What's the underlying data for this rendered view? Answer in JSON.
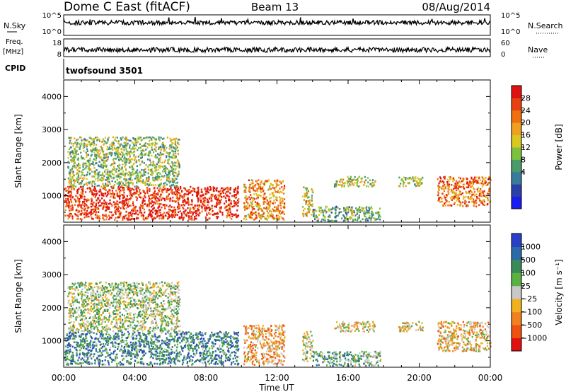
{
  "header": {
    "station": "Dome C East (fitACF)",
    "beam": "Beam 13",
    "date": "08/Aug/2014"
  },
  "strips": {
    "nsky_label": "N.Sky",
    "nsky_ticks": [
      "10^5",
      "10^0"
    ],
    "nsearch_label": "N.Search",
    "nsearch_ticks": [
      "10^5",
      "10^0"
    ],
    "freq_label_line1": "Freq.",
    "freq_label_line2": "[MHz]",
    "freq_ticks": [
      "18",
      "8"
    ],
    "nave_label": "Nave",
    "nave_ticks": [
      "60",
      "0"
    ],
    "cpid_label": "CPID",
    "cpid_value": "twofsound 3501"
  },
  "chart_data": [
    {
      "type": "heatmap",
      "name": "power-panel",
      "xlabel": "",
      "ylabel": "Slant Range [km]",
      "x_ticks": [
        "00:00",
        "04:00",
        "08:00",
        "12:00",
        "16:00",
        "20:00",
        "00:00"
      ],
      "y_ticks": [
        1000,
        2000,
        3000,
        4000
      ],
      "ylim": [
        200,
        4500
      ],
      "xlim_hours": [
        0,
        24
      ],
      "colorbar": {
        "label": "Power [dB]",
        "ticks": [
          "28",
          "24",
          "20",
          "16",
          "12",
          "8",
          "4"
        ],
        "colors": [
          "#1c1cf0",
          "#2a3fa8",
          "#3a7a9a",
          "#4a9a6a",
          "#7cc040",
          "#d8c820",
          "#f0a020",
          "#f07010",
          "#e84010",
          "#e01010"
        ]
      },
      "regions": [
        {
          "t0": 0.0,
          "t1": 9.8,
          "r0": 300,
          "r1": 1300,
          "level": 0.9
        },
        {
          "t0": 0.2,
          "t1": 6.5,
          "r0": 1300,
          "r1": 2800,
          "level": 0.45
        },
        {
          "t0": 10.1,
          "t1": 12.4,
          "r0": 300,
          "r1": 1500,
          "level": 0.7
        },
        {
          "t0": 13.4,
          "t1": 14.0,
          "r0": 400,
          "r1": 1300,
          "level": 0.6
        },
        {
          "t0": 14.0,
          "t1": 17.8,
          "r0": 250,
          "r1": 700,
          "level": 0.4
        },
        {
          "t0": 15.2,
          "t1": 17.5,
          "r0": 1300,
          "r1": 1600,
          "level": 0.5
        },
        {
          "t0": 18.8,
          "t1": 20.2,
          "r0": 1300,
          "r1": 1600,
          "level": 0.5
        },
        {
          "t0": 21.0,
          "t1": 24.0,
          "r0": 700,
          "r1": 1600,
          "level": 0.75
        }
      ]
    },
    {
      "type": "heatmap",
      "name": "velocity-panel",
      "xlabel": "Time UT",
      "ylabel": "Slant Range [km]",
      "x_ticks": [
        "00:00",
        "04:00",
        "08:00",
        "12:00",
        "16:00",
        "20:00",
        "00:00"
      ],
      "y_ticks": [
        1000,
        2000,
        3000,
        4000
      ],
      "ylim": [
        200,
        4500
      ],
      "xlim_hours": [
        0,
        24
      ],
      "colorbar": {
        "label": "Velocity [m s⁻¹]",
        "ticks": [
          "1000",
          "500",
          "100",
          "25",
          "−25",
          "−100",
          "−500",
          "−1000"
        ],
        "colors": [
          "#2a3fc8",
          "#2a6aa8",
          "#3a8a5a",
          "#5ab040",
          "#c8c8c8",
          "#f0b020",
          "#f08020",
          "#f05010",
          "#e01010"
        ]
      },
      "regions": [
        {
          "t0": 0.0,
          "t1": 9.8,
          "r0": 300,
          "r1": 1300,
          "level": 0.25
        },
        {
          "t0": 0.2,
          "t1": 6.5,
          "r0": 1300,
          "r1": 2800,
          "level": 0.45
        },
        {
          "t0": 10.1,
          "t1": 12.4,
          "r0": 300,
          "r1": 1500,
          "level": 0.65
        },
        {
          "t0": 13.4,
          "t1": 14.0,
          "r0": 400,
          "r1": 1300,
          "level": 0.5
        },
        {
          "t0": 14.0,
          "t1": 17.8,
          "r0": 250,
          "r1": 700,
          "level": 0.35
        },
        {
          "t0": 15.2,
          "t1": 17.5,
          "r0": 1300,
          "r1": 1600,
          "level": 0.55
        },
        {
          "t0": 18.8,
          "t1": 20.2,
          "r0": 1300,
          "r1": 1600,
          "level": 0.55
        },
        {
          "t0": 21.0,
          "t1": 24.0,
          "r0": 700,
          "r1": 1600,
          "level": 0.6
        }
      ]
    }
  ]
}
